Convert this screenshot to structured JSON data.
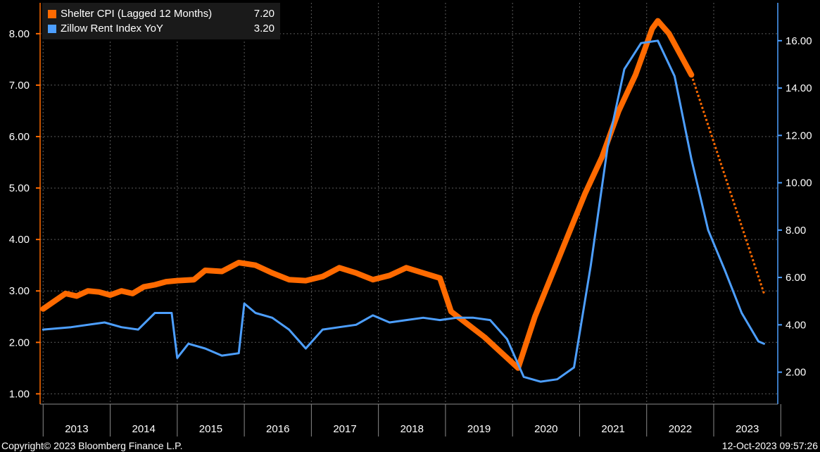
{
  "chart_data": {
    "type": "line",
    "x_axis": {
      "type": "date",
      "range": [
        "2012-12-15",
        "2023-12-15"
      ],
      "tick_labels": [
        "2013",
        "2014",
        "2015",
        "2016",
        "2017",
        "2018",
        "2019",
        "2020",
        "2021",
        "2022",
        "2023"
      ]
    },
    "y_left": {
      "ylim": [
        0.8,
        8.6
      ],
      "ticks": [
        "1.00",
        "2.00",
        "3.00",
        "4.00",
        "5.00",
        "6.00",
        "7.00",
        "8.00"
      ],
      "color": "#FF6A00"
    },
    "y_right": {
      "ylim": [
        0.65,
        17.6
      ],
      "ticks": [
        "2.00",
        "4.00",
        "6.00",
        "8.00",
        "10.00",
        "12.00",
        "14.00",
        "16.00"
      ],
      "color": "#4D9FFF"
    },
    "grid": true,
    "legend_placement": "top-left",
    "series": [
      {
        "name": "Shelter CPI (Lagged 12 Months)",
        "value_label": "7.20",
        "color": "#FF6A00",
        "axis": "left",
        "points": [
          [
            "2013-01",
            2.65
          ],
          [
            "2013-03",
            2.8
          ],
          [
            "2013-05",
            2.95
          ],
          [
            "2013-07",
            2.9
          ],
          [
            "2013-09",
            3.0
          ],
          [
            "2013-11",
            2.98
          ],
          [
            "2014-01",
            2.92
          ],
          [
            "2014-03",
            3.0
          ],
          [
            "2014-05",
            2.95
          ],
          [
            "2014-07",
            3.08
          ],
          [
            "2014-09",
            3.12
          ],
          [
            "2014-11",
            3.18
          ],
          [
            "2015-01",
            3.2
          ],
          [
            "2015-04",
            3.22
          ],
          [
            "2015-06",
            3.4
          ],
          [
            "2015-09",
            3.38
          ],
          [
            "2015-12",
            3.55
          ],
          [
            "2016-03",
            3.5
          ],
          [
            "2016-06",
            3.35
          ],
          [
            "2016-09",
            3.22
          ],
          [
            "2016-12",
            3.2
          ],
          [
            "2017-03",
            3.28
          ],
          [
            "2017-06",
            3.45
          ],
          [
            "2017-09",
            3.35
          ],
          [
            "2017-12",
            3.22
          ],
          [
            "2018-03",
            3.3
          ],
          [
            "2018-06",
            3.45
          ],
          [
            "2018-09",
            3.35
          ],
          [
            "2018-12",
            3.25
          ],
          [
            "2019-02",
            2.6
          ],
          [
            "2019-05",
            2.35
          ],
          [
            "2019-08",
            2.1
          ],
          [
            "2019-11",
            1.8
          ],
          [
            "2020-02",
            1.5
          ],
          [
            "2020-05",
            2.5
          ],
          [
            "2020-08",
            3.3
          ],
          [
            "2020-11",
            4.1
          ],
          [
            "2021-02",
            4.9
          ],
          [
            "2021-05",
            5.6
          ],
          [
            "2021-08",
            6.5
          ],
          [
            "2021-11",
            7.2
          ],
          [
            "2022-02",
            8.1
          ],
          [
            "2022-03",
            8.25
          ],
          [
            "2022-05",
            8.0
          ],
          [
            "2022-07",
            7.6
          ],
          [
            "2022-09",
            7.2
          ]
        ],
        "projection": [
          [
            "2022-09",
            7.2
          ],
          [
            "2023-10",
            2.95
          ]
        ]
      },
      {
        "name": "Zillow Rent Index YoY",
        "value_label": "3.20",
        "color": "#4D9FFF",
        "axis": "right",
        "points": [
          [
            "2013-01",
            3.8
          ],
          [
            "2013-06",
            3.9
          ],
          [
            "2013-12",
            4.1
          ],
          [
            "2014-03",
            3.9
          ],
          [
            "2014-06",
            3.8
          ],
          [
            "2014-09",
            4.5
          ],
          [
            "2014-12",
            4.5
          ],
          [
            "2015-01",
            2.6
          ],
          [
            "2015-03",
            3.2
          ],
          [
            "2015-06",
            3.0
          ],
          [
            "2015-09",
            2.7
          ],
          [
            "2015-12",
            2.8
          ],
          [
            "2016-01",
            4.9
          ],
          [
            "2016-03",
            4.5
          ],
          [
            "2016-06",
            4.3
          ],
          [
            "2016-09",
            3.8
          ],
          [
            "2016-12",
            3.0
          ],
          [
            "2017-03",
            3.8
          ],
          [
            "2017-06",
            3.9
          ],
          [
            "2017-09",
            4.0
          ],
          [
            "2017-12",
            4.4
          ],
          [
            "2018-03",
            4.1
          ],
          [
            "2018-06",
            4.2
          ],
          [
            "2018-09",
            4.3
          ],
          [
            "2018-12",
            4.2
          ],
          [
            "2019-03",
            4.3
          ],
          [
            "2019-06",
            4.3
          ],
          [
            "2019-09",
            4.2
          ],
          [
            "2019-12",
            3.4
          ],
          [
            "2020-03",
            1.8
          ],
          [
            "2020-06",
            1.6
          ],
          [
            "2020-09",
            1.7
          ],
          [
            "2020-12",
            2.2
          ],
          [
            "2021-03",
            6.5
          ],
          [
            "2021-06",
            11.5
          ],
          [
            "2021-09",
            14.8
          ],
          [
            "2021-12",
            15.9
          ],
          [
            "2022-03",
            16.0
          ],
          [
            "2022-06",
            14.5
          ],
          [
            "2022-09",
            11.0
          ],
          [
            "2022-12",
            8.0
          ],
          [
            "2023-03",
            6.3
          ],
          [
            "2023-06",
            4.5
          ],
          [
            "2023-09",
            3.3
          ],
          [
            "2023-10",
            3.2
          ]
        ]
      }
    ]
  },
  "legend": {
    "items": [
      {
        "name": "Shelter CPI (Lagged 12 Months)",
        "value": "7.20",
        "color": "#FF6A00"
      },
      {
        "name": "Zillow Rent Index YoY",
        "value": "3.20",
        "color": "#4D9FFF"
      }
    ]
  },
  "footer": {
    "copyright": "Copyright© 2023 Bloomberg Finance L.P.",
    "timestamp": "12-Oct-2023 09:57:26"
  }
}
